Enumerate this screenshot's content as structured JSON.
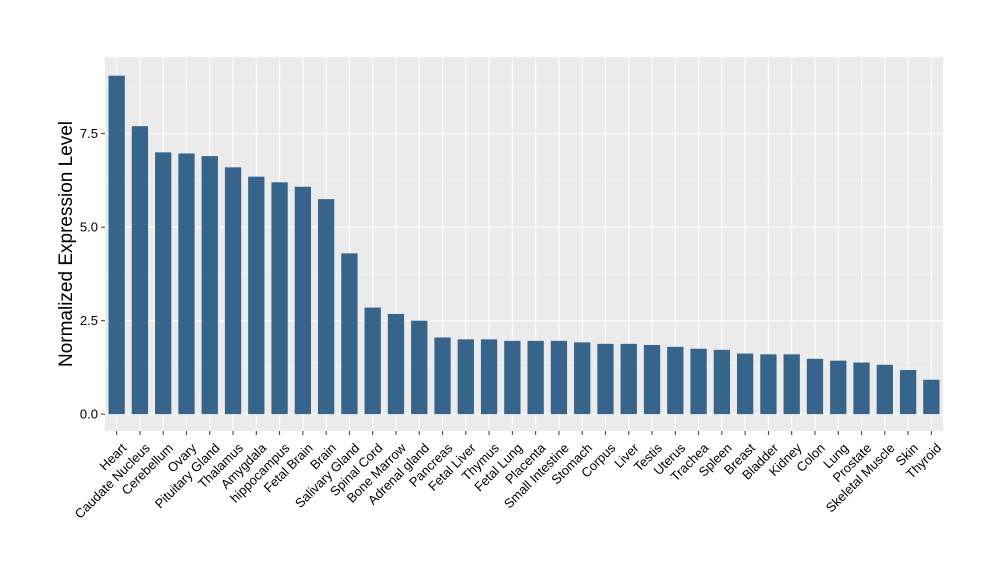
{
  "chart_data": {
    "type": "bar",
    "ylabel": "Normalized Expression Level",
    "xlabel": "",
    "ylim": [
      -0.45,
      9.55
    ],
    "yticks": [
      0.0,
      2.5,
      5.0,
      7.5
    ],
    "ytick_labels": [
      "0.0",
      "2.5",
      "5.0",
      "7.5"
    ],
    "grid": true,
    "categories": [
      "Heart",
      "Caudate Nucleus",
      "Cerebellum",
      "Ovary",
      "Pituitary Gland",
      "Thalamus",
      "Amygdala",
      "hippocampus",
      "Fetal Brain",
      "Brain",
      "Salivary Gland",
      "Spinal Cord",
      "Bone Marrow",
      "Adrenal gland",
      "Pancreas",
      "Fetal Liver",
      "Thymus",
      "Fetal Lung",
      "Placenta",
      "Small Intestine",
      "Stomach",
      "Corpus",
      "Liver",
      "Testis",
      "Uterus",
      "Trachea",
      "Spleen",
      "Breast",
      "Bladder",
      "Kidney",
      "Colon",
      "Lung",
      "Prostate",
      "Skeletal Muscle",
      "Skin",
      "Thyroid"
    ],
    "values": [
      9.05,
      7.7,
      7.0,
      6.97,
      6.9,
      6.6,
      6.35,
      6.2,
      6.08,
      5.75,
      4.3,
      2.85,
      2.68,
      2.5,
      2.05,
      2.0,
      2.0,
      1.96,
      1.96,
      1.96,
      1.92,
      1.88,
      1.88,
      1.85,
      1.8,
      1.75,
      1.72,
      1.62,
      1.6,
      1.6,
      1.48,
      1.43,
      1.38,
      1.32,
      1.18,
      0.92
    ],
    "colors": {
      "bar": "#36648b",
      "panel": "#ebebeb",
      "grid_major": "#ffffff",
      "grid_minor": "#f5f5f5",
      "text": "#000000",
      "tick": "#333333"
    }
  }
}
